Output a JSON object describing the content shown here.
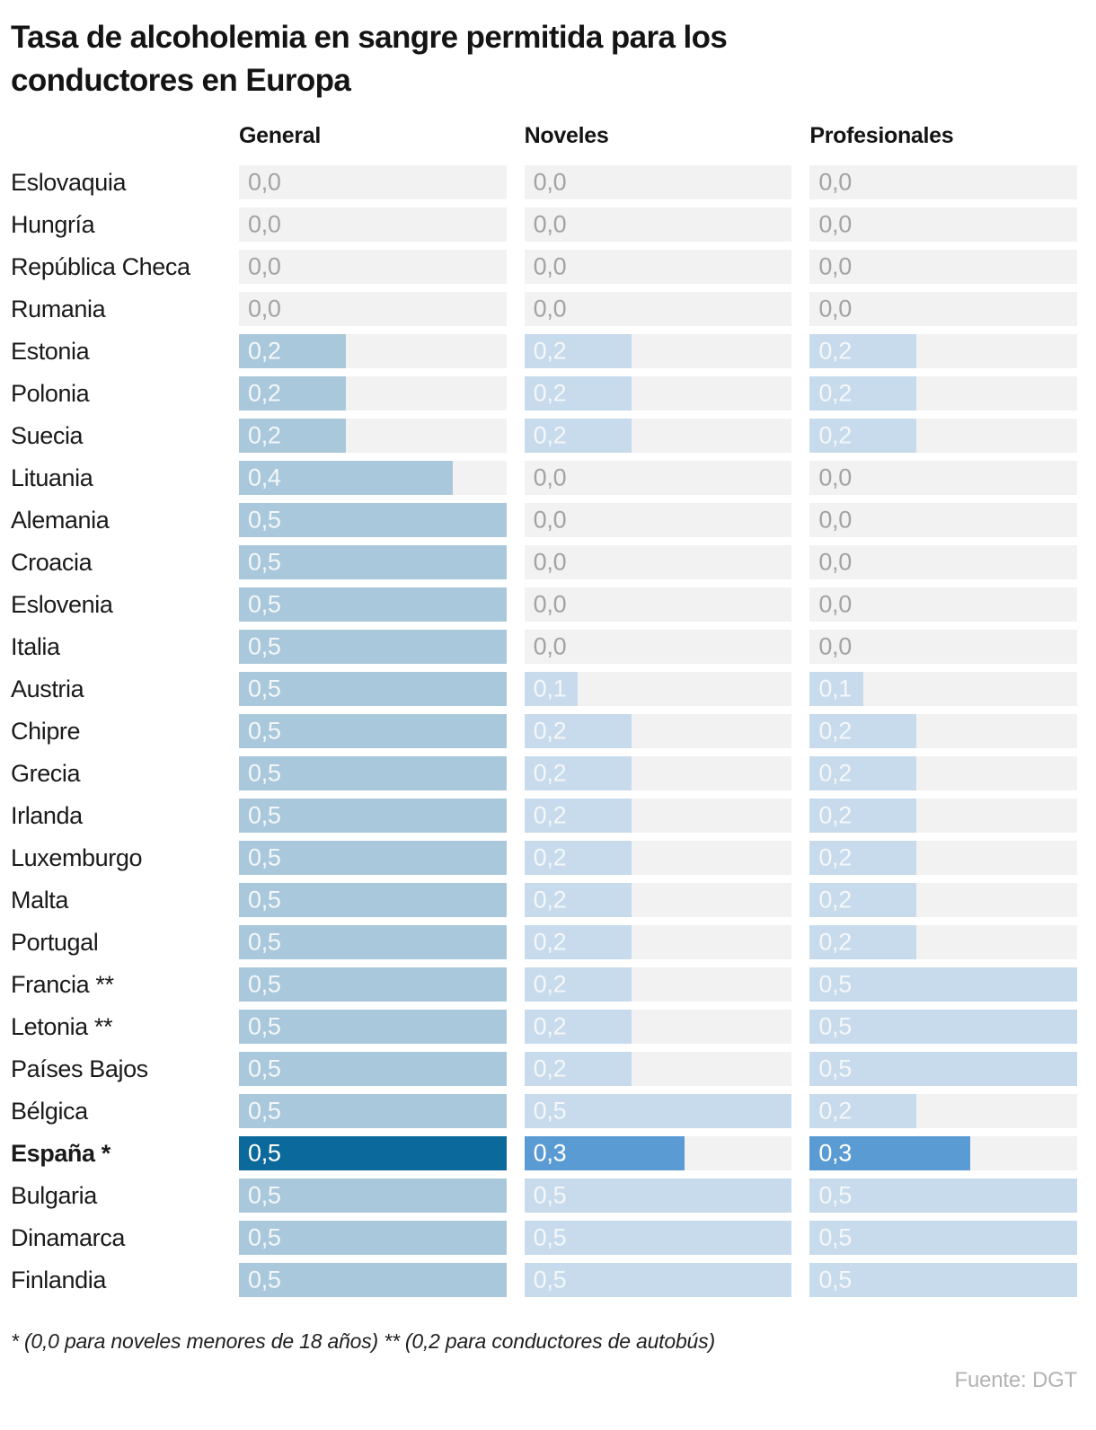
{
  "title": "Tasa de alcoholemia en sangre permitida para los\nconductores en Europa",
  "columns": [
    "General",
    "Noveles",
    "Profesionales"
  ],
  "footnote": "* (0,0 para noveles menores de 18 años) ** (0,2 para conductores de autobús)",
  "source": "Fuente: DGT",
  "colors": {
    "track": "#f2f2f2",
    "general_bar": "#aac8db",
    "secondary_bar": "#c7dbec",
    "highlight_general_bar": "#0b6a9b",
    "highlight_secondary_bar": "#5b9bd3",
    "zero_text": "#a3a3a3",
    "bar_text": "#f4f7f9",
    "highlight_bar_text": "#ffffff"
  },
  "chart_data": {
    "type": "bar",
    "orientation": "horizontal",
    "title": "Tasa de alcoholemia en sangre permitida para los conductores en Europa",
    "xlim": [
      0,
      0.5
    ],
    "decimal_separator": ",",
    "highlight_category": "España *",
    "categories": [
      "Eslovaquia",
      "Hungría",
      "República Checa",
      "Rumania",
      "Estonia",
      "Polonia",
      "Suecia",
      "Lituania",
      "Alemania",
      "Croacia",
      "Eslovenia",
      "Italia",
      "Austria",
      "Chipre",
      "Grecia",
      "Irlanda",
      "Luxemburgo",
      "Malta",
      "Portugal",
      "Francia **",
      "Letonia **",
      "Países Bajos",
      "Bélgica",
      "España *",
      "Bulgaria",
      "Dinamarca",
      "Finlandia"
    ],
    "series": [
      {
        "name": "General",
        "values": [
          0.0,
          0.0,
          0.0,
          0.0,
          0.2,
          0.2,
          0.2,
          0.4,
          0.5,
          0.5,
          0.5,
          0.5,
          0.5,
          0.5,
          0.5,
          0.5,
          0.5,
          0.5,
          0.5,
          0.5,
          0.5,
          0.5,
          0.5,
          0.5,
          0.5,
          0.5,
          0.5
        ]
      },
      {
        "name": "Noveles",
        "values": [
          0.0,
          0.0,
          0.0,
          0.0,
          0.2,
          0.2,
          0.2,
          0.0,
          0.0,
          0.0,
          0.0,
          0.0,
          0.1,
          0.2,
          0.2,
          0.2,
          0.2,
          0.2,
          0.2,
          0.2,
          0.2,
          0.2,
          0.5,
          0.3,
          0.5,
          0.5,
          0.5
        ]
      },
      {
        "name": "Profesionales",
        "values": [
          0.0,
          0.0,
          0.0,
          0.0,
          0.2,
          0.2,
          0.2,
          0.0,
          0.0,
          0.0,
          0.0,
          0.0,
          0.1,
          0.2,
          0.2,
          0.2,
          0.2,
          0.2,
          0.2,
          0.5,
          0.5,
          0.5,
          0.2,
          0.3,
          0.5,
          0.5,
          0.5
        ]
      }
    ]
  }
}
